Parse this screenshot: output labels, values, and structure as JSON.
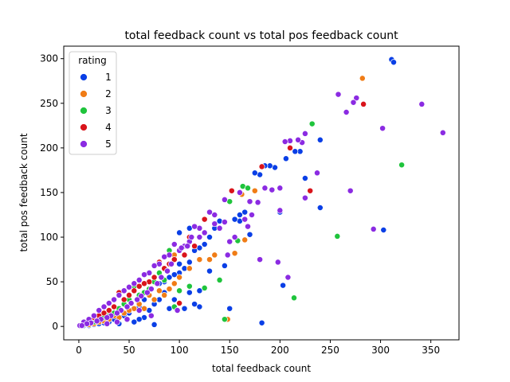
{
  "chart_data": {
    "type": "scatter",
    "title": "total feedback count vs total pos feedback count",
    "xlabel": "total feedback count",
    "ylabel": "total pos feedback count",
    "xlim": [
      -15,
      378
    ],
    "ylim": [
      -15,
      314
    ],
    "xticks": [
      0,
      50,
      100,
      150,
      200,
      250,
      300,
      350
    ],
    "yticks": [
      0,
      50,
      100,
      150,
      200,
      250,
      300
    ],
    "grid": false,
    "legend": {
      "title": "rating",
      "placement": "top-left"
    },
    "series": [
      {
        "name": "1",
        "color": "#0a3fe6",
        "points": [
          [
            311,
            299
          ],
          [
            313,
            296
          ],
          [
            303,
            108
          ],
          [
            240,
            133
          ],
          [
            240,
            209
          ],
          [
            225,
            166
          ],
          [
            220,
            196
          ],
          [
            215,
            196
          ],
          [
            206,
            188
          ],
          [
            203,
            46
          ],
          [
            200,
            128
          ],
          [
            195,
            178
          ],
          [
            190,
            180
          ],
          [
            185,
            180
          ],
          [
            185,
            155
          ],
          [
            180,
            170
          ],
          [
            175,
            172
          ],
          [
            170,
            103
          ],
          [
            165,
            128
          ],
          [
            160,
            125
          ],
          [
            160,
            118
          ],
          [
            155,
            120
          ],
          [
            150,
            20
          ],
          [
            145,
            68
          ],
          [
            140,
            118
          ],
          [
            135,
            110
          ],
          [
            130,
            100
          ],
          [
            130,
            62
          ],
          [
            125,
            92
          ],
          [
            120,
            88
          ],
          [
            120,
            40
          ],
          [
            120,
            22
          ],
          [
            115,
            85
          ],
          [
            115,
            25
          ],
          [
            110,
            72
          ],
          [
            110,
            38
          ],
          [
            105,
            65
          ],
          [
            105,
            20
          ],
          [
            100,
            70
          ],
          [
            100,
            60
          ],
          [
            95,
            58
          ],
          [
            95,
            30
          ],
          [
            90,
            55
          ],
          [
            90,
            20
          ],
          [
            85,
            50
          ],
          [
            85,
            38
          ],
          [
            80,
            48
          ],
          [
            80,
            30
          ],
          [
            75,
            2
          ],
          [
            75,
            25
          ],
          [
            70,
            35
          ],
          [
            70,
            18
          ],
          [
            65,
            30
          ],
          [
            65,
            10
          ],
          [
            60,
            22
          ],
          [
            60,
            8
          ],
          [
            55,
            20
          ],
          [
            55,
            5
          ],
          [
            50,
            15
          ],
          [
            45,
            12
          ],
          [
            40,
            10
          ],
          [
            40,
            3
          ],
          [
            35,
            8
          ],
          [
            30,
            5
          ],
          [
            25,
            4
          ],
          [
            20,
            3
          ],
          [
            15,
            2
          ],
          [
            10,
            1
          ],
          [
            5,
            1
          ],
          [
            182,
            4
          ],
          [
            100,
            105
          ],
          [
            110,
            110
          ]
        ]
      },
      {
        "name": "2",
        "color": "#f07c16",
        "points": [
          [
            282,
            278
          ],
          [
            175,
            152
          ],
          [
            165,
            97
          ],
          [
            162,
            148
          ],
          [
            155,
            82
          ],
          [
            148,
            8
          ],
          [
            135,
            80
          ],
          [
            130,
            75
          ],
          [
            120,
            75
          ],
          [
            110,
            65
          ],
          [
            100,
            55
          ],
          [
            95,
            48
          ],
          [
            90,
            42
          ],
          [
            85,
            35
          ],
          [
            80,
            40
          ],
          [
            75,
            30
          ],
          [
            70,
            35
          ],
          [
            65,
            20
          ],
          [
            60,
            25
          ],
          [
            55,
            20
          ],
          [
            50,
            18
          ],
          [
            45,
            15
          ],
          [
            40,
            10
          ],
          [
            35,
            12
          ],
          [
            30,
            8
          ],
          [
            25,
            6
          ],
          [
            20,
            5
          ],
          [
            15,
            3
          ],
          [
            10,
            2
          ],
          [
            80,
            72
          ],
          [
            95,
            80
          ]
        ]
      },
      {
        "name": "3",
        "color": "#1fc43c",
        "points": [
          [
            232,
            227
          ],
          [
            321,
            181
          ],
          [
            257,
            101
          ],
          [
            214,
            32
          ],
          [
            163,
            157
          ],
          [
            158,
            96
          ],
          [
            150,
            140
          ],
          [
            145,
            8
          ],
          [
            140,
            52
          ],
          [
            125,
            43
          ],
          [
            110,
            45
          ],
          [
            100,
            40
          ],
          [
            95,
            22
          ],
          [
            90,
            85
          ],
          [
            85,
            52
          ],
          [
            80,
            60
          ],
          [
            75,
            50
          ],
          [
            70,
            42
          ],
          [
            65,
            38
          ],
          [
            60,
            35
          ],
          [
            55,
            45
          ],
          [
            50,
            30
          ],
          [
            45,
            25
          ],
          [
            40,
            20
          ],
          [
            35,
            15
          ],
          [
            30,
            12
          ],
          [
            25,
            10
          ],
          [
            20,
            8
          ],
          [
            15,
            5
          ],
          [
            10,
            4
          ],
          [
            5,
            2
          ],
          [
            168,
            155
          ]
        ]
      },
      {
        "name": "4",
        "color": "#d9141b",
        "points": [
          [
            283,
            249
          ],
          [
            230,
            152
          ],
          [
            210,
            200
          ],
          [
            182,
            179
          ],
          [
            152,
            152
          ],
          [
            125,
            120
          ],
          [
            115,
            90
          ],
          [
            110,
            100
          ],
          [
            105,
            80
          ],
          [
            100,
            26
          ],
          [
            95,
            75
          ],
          [
            90,
            70
          ],
          [
            85,
            65
          ],
          [
            80,
            72
          ],
          [
            75,
            55
          ],
          [
            70,
            50
          ],
          [
            65,
            48
          ],
          [
            60,
            45
          ],
          [
            55,
            40
          ],
          [
            50,
            35
          ],
          [
            45,
            30
          ],
          [
            40,
            38
          ],
          [
            35,
            22
          ],
          [
            30,
            18
          ],
          [
            25,
            15
          ],
          [
            20,
            12
          ],
          [
            15,
            10
          ],
          [
            10,
            6
          ],
          [
            5,
            3
          ]
        ]
      },
      {
        "name": "5",
        "color": "#8b2be2",
        "points": [
          [
            362,
            217
          ],
          [
            341,
            249
          ],
          [
            302,
            222
          ],
          [
            293,
            109
          ],
          [
            276,
            256
          ],
          [
            273,
            251
          ],
          [
            270,
            152
          ],
          [
            266,
            240
          ],
          [
            258,
            260
          ],
          [
            237,
            172
          ],
          [
            225,
            216
          ],
          [
            225,
            144
          ],
          [
            222,
            206
          ],
          [
            218,
            209
          ],
          [
            210,
            208
          ],
          [
            208,
            55
          ],
          [
            205,
            207
          ],
          [
            200,
            155
          ],
          [
            198,
            72
          ],
          [
            192,
            153
          ],
          [
            180,
            75
          ],
          [
            178,
            139
          ],
          [
            172,
            125
          ],
          [
            168,
            112
          ],
          [
            165,
            120
          ],
          [
            160,
            150
          ],
          [
            155,
            100
          ],
          [
            150,
            95
          ],
          [
            148,
            80
          ],
          [
            145,
            142
          ],
          [
            140,
            110
          ],
          [
            135,
            125
          ],
          [
            130,
            128
          ],
          [
            125,
            105
          ],
          [
            120,
            110
          ],
          [
            115,
            112
          ],
          [
            110,
            95
          ],
          [
            105,
            90
          ],
          [
            100,
            85
          ],
          [
            98,
            18
          ],
          [
            95,
            92
          ],
          [
            90,
            80
          ],
          [
            85,
            78
          ],
          [
            80,
            70
          ],
          [
            75,
            68
          ],
          [
            70,
            60
          ],
          [
            65,
            58
          ],
          [
            60,
            52
          ],
          [
            55,
            48
          ],
          [
            50,
            44
          ],
          [
            45,
            40
          ],
          [
            40,
            35
          ],
          [
            35,
            30
          ],
          [
            30,
            26
          ],
          [
            25,
            22
          ],
          [
            20,
            18
          ],
          [
            15,
            12
          ],
          [
            10,
            8
          ],
          [
            5,
            5
          ],
          [
            1,
            1
          ],
          [
            185,
            155
          ],
          [
            170,
            140
          ],
          [
            145,
            117
          ],
          [
            135,
            115
          ],
          [
            120,
            100
          ],
          [
            112,
            100
          ],
          [
            108,
            90
          ],
          [
            102,
            88
          ],
          [
            92,
            70
          ],
          [
            88,
            62
          ],
          [
            82,
            55
          ],
          [
            78,
            48
          ],
          [
            72,
            42
          ],
          [
            68,
            38
          ],
          [
            62,
            34
          ],
          [
            58,
            30
          ],
          [
            52,
            26
          ],
          [
            48,
            22
          ],
          [
            42,
            18
          ],
          [
            38,
            15
          ],
          [
            32,
            12
          ],
          [
            28,
            10
          ],
          [
            22,
            8
          ],
          [
            18,
            6
          ],
          [
            12,
            4
          ],
          [
            8,
            3
          ],
          [
            3,
            1
          ],
          [
            72,
            12
          ],
          [
            60,
            18
          ],
          [
            48,
            8
          ],
          [
            38,
            5
          ],
          [
            28,
            3
          ],
          [
            200,
            130
          ]
        ]
      }
    ]
  }
}
